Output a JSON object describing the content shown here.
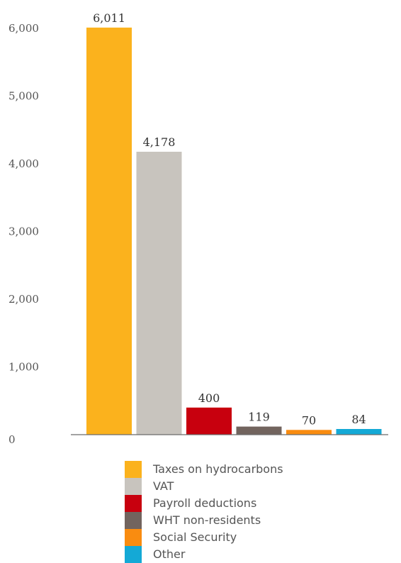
{
  "chart_data": {
    "type": "bar",
    "title": "",
    "xlabel": "",
    "ylabel": "",
    "ylim": [
      0,
      6000
    ],
    "yticks": [
      {
        "value": 0,
        "label": "0"
      },
      {
        "value": 1000,
        "label": "1,000"
      },
      {
        "value": 2000,
        "label": "2,000"
      },
      {
        "value": 3000,
        "label": "3,000"
      },
      {
        "value": 4000,
        "label": "4,000"
      },
      {
        "value": 5000,
        "label": "5,000"
      },
      {
        "value": 6000,
        "label": "6,000"
      }
    ],
    "grid": false,
    "legend_position": "bottom",
    "categories": [
      "Taxes on hydrocarbons",
      "VAT",
      "Payroll deductions",
      "WHT non-residents",
      "Social Security",
      "Other"
    ],
    "values": [
      6011,
      4178,
      400,
      119,
      70,
      84
    ],
    "value_labels": [
      "6,011",
      "4,178",
      "400",
      "119",
      "70",
      "84"
    ],
    "colors": [
      "#FBB21D",
      "#C8C4BE",
      "#C8000E",
      "#72645E",
      "#F98C10",
      "#14A9D6"
    ]
  }
}
